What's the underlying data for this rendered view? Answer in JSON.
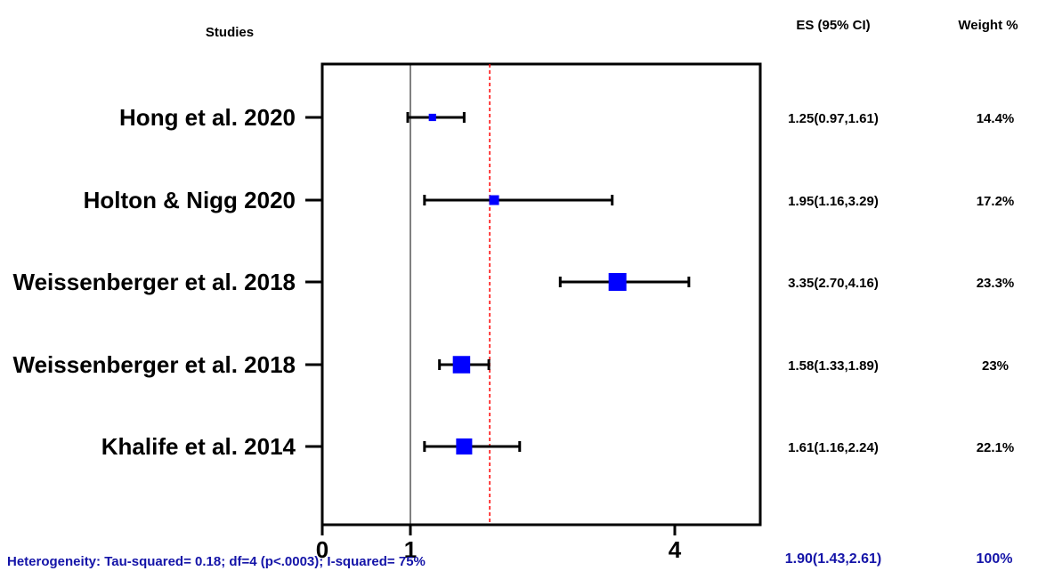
{
  "chart_data": {
    "type": "forest",
    "headers": {
      "studies": "Studies",
      "es": "ES (95% CI)",
      "weight": "Weight %"
    },
    "xlim": [
      0,
      5
    ],
    "xticks": [
      {
        "value": 0,
        "label": "0"
      },
      {
        "value": 1,
        "label": "1"
      },
      {
        "value": 4,
        "label": "4"
      }
    ],
    "reference_line": 1,
    "pooled_line": 1.9,
    "studies": [
      {
        "name": "Hong et al. 2020",
        "es": 1.25,
        "lo": 0.97,
        "hi": 1.61,
        "ci_label": "1.25(0.97,1.61)",
        "weight_label": "14.4%",
        "weight": 14.4
      },
      {
        "name": "Holton & Nigg 2020",
        "es": 1.95,
        "lo": 1.16,
        "hi": 3.29,
        "ci_label": "1.95(1.16,3.29)",
        "weight_label": "17.2%",
        "weight": 17.2
      },
      {
        "name": "Weissenberger et al. 2018",
        "es": 3.35,
        "lo": 2.7,
        "hi": 4.16,
        "ci_label": "3.35(2.70,4.16)",
        "weight_label": "23.3%",
        "weight": 23.3
      },
      {
        "name": "Weissenberger et al. 2018",
        "es": 1.58,
        "lo": 1.33,
        "hi": 1.89,
        "ci_label": "1.58(1.33,1.89)",
        "weight_label": "23%",
        "weight": 23
      },
      {
        "name": "Khalife et al. 2014",
        "es": 1.61,
        "lo": 1.16,
        "hi": 2.24,
        "ci_label": "1.61(1.16,2.24)",
        "weight_label": "22.1%",
        "weight": 22.1
      }
    ],
    "summary": {
      "heterogeneity": "Heterogeneity: Tau-squared= 0.18; df=4 (p<.0003); I-squared= 75%",
      "ci_label": "1.90(1.43,2.61)",
      "weight_label": "100%"
    },
    "colors": {
      "marker": "#0000ff",
      "pooled_line": "#ff0000",
      "summary_text": "#1414a8"
    }
  }
}
